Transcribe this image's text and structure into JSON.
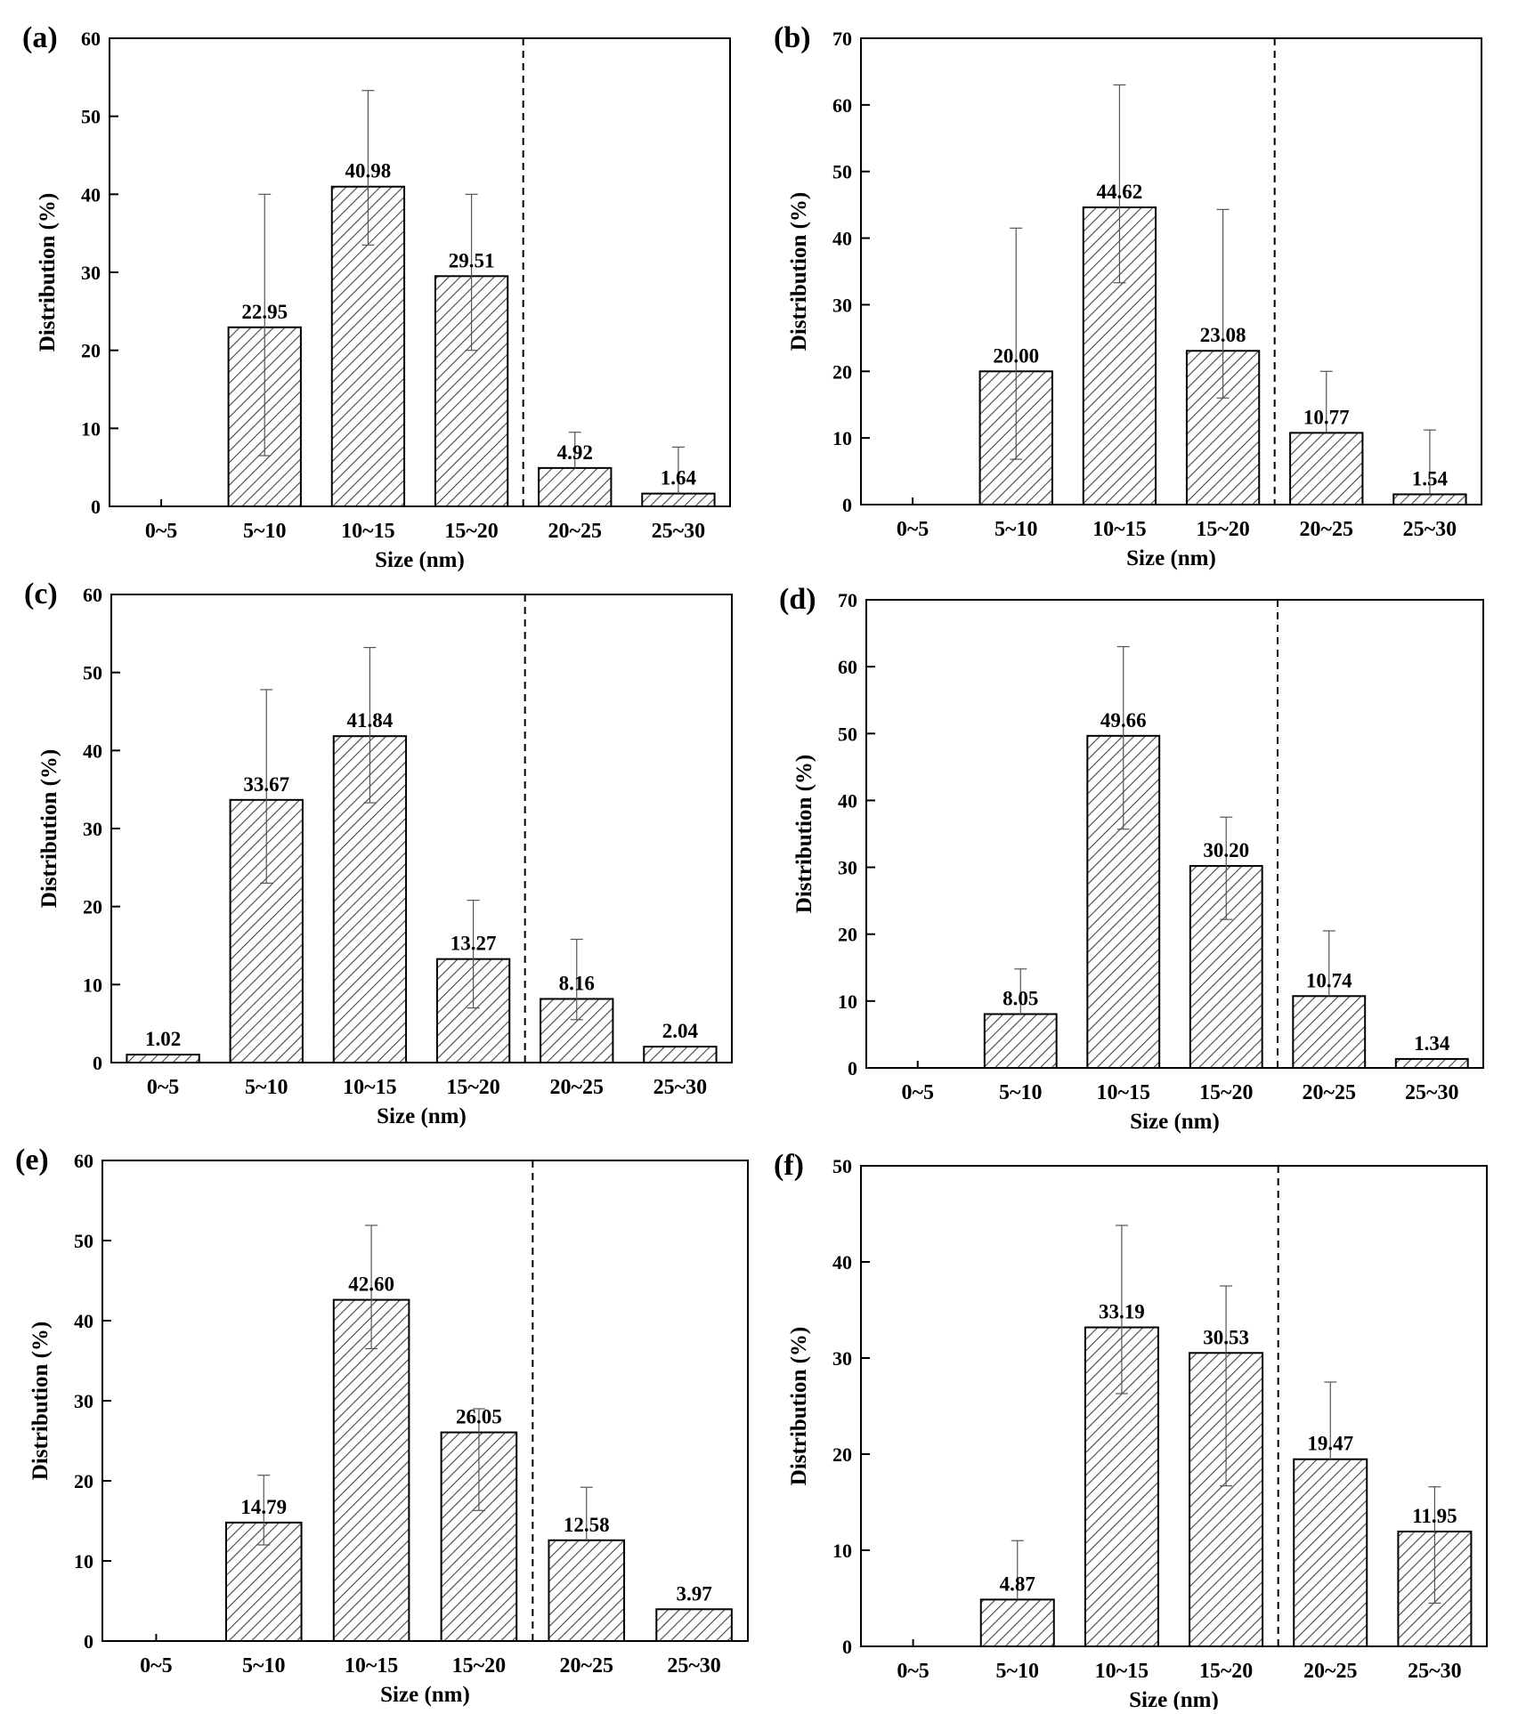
{
  "chart_data": [
    {
      "panel": "(a)",
      "type": "bar",
      "categories": [
        "0~5",
        "5~10",
        "10~15",
        "15~20",
        "20~25",
        "25~30"
      ],
      "values": [
        0,
        22.95,
        40.98,
        29.51,
        4.92,
        1.64
      ],
      "value_labels": [
        "",
        "22.95",
        "40.98",
        "29.51",
        "4.92",
        "1.64"
      ],
      "error_low": [
        null,
        6.5,
        33.5,
        20,
        null,
        null
      ],
      "error_high": [
        null,
        40,
        53.3,
        40,
        9.5,
        7.6
      ],
      "xlabel": "Size (nm)",
      "ylabel": "Distribution (%)",
      "ylim": [
        0,
        60
      ],
      "yticks": [
        0,
        10,
        20,
        30,
        40,
        50,
        60
      ],
      "divider_between": [
        3,
        4
      ]
    },
    {
      "panel": "(b)",
      "type": "bar",
      "categories": [
        "0~5",
        "5~10",
        "10~15",
        "15~20",
        "20~25",
        "25~30"
      ],
      "values": [
        0,
        20.0,
        44.62,
        23.08,
        10.77,
        1.54
      ],
      "value_labels": [
        "",
        "20.00",
        "44.62",
        "23.08",
        "10.77",
        "1.54"
      ],
      "error_low": [
        null,
        6.8,
        33.3,
        16,
        null,
        null
      ],
      "error_high": [
        null,
        41.5,
        63,
        44.3,
        20,
        11.2
      ],
      "xlabel": "Size (nm)",
      "ylabel": "Distribution (%)",
      "ylim": [
        0,
        70
      ],
      "yticks": [
        0,
        10,
        20,
        30,
        40,
        50,
        60,
        70
      ],
      "divider_between": [
        3,
        4
      ]
    },
    {
      "panel": "(c)",
      "type": "bar",
      "categories": [
        "0~5",
        "5~10",
        "10~15",
        "15~20",
        "20~25",
        "25~30"
      ],
      "values": [
        1.02,
        33.67,
        41.84,
        13.27,
        8.16,
        2.04
      ],
      "value_labels": [
        "1.02",
        "33.67",
        "41.84",
        "13.27",
        "8.16",
        "2.04"
      ],
      "error_low": [
        null,
        23,
        33.3,
        7,
        5.5,
        null
      ],
      "error_high": [
        null,
        47.8,
        53.2,
        20.8,
        15.8,
        null
      ],
      "xlabel": "Size (nm)",
      "ylabel": "Distribution (%)",
      "ylim": [
        0,
        60
      ],
      "yticks": [
        0,
        10,
        20,
        30,
        40,
        50,
        60
      ],
      "divider_between": [
        3,
        4
      ]
    },
    {
      "panel": "(d)",
      "type": "bar",
      "categories": [
        "0~5",
        "5~10",
        "10~15",
        "15~20",
        "20~25",
        "25~30"
      ],
      "values": [
        0,
        8.05,
        49.66,
        30.2,
        10.74,
        1.34
      ],
      "value_labels": [
        "",
        "8.05",
        "49.66",
        "30.20",
        "10.74",
        "1.34"
      ],
      "error_low": [
        null,
        null,
        35.7,
        22.2,
        null,
        null
      ],
      "error_high": [
        null,
        14.8,
        63,
        37.5,
        20.5,
        null
      ],
      "xlabel": "Size (nm)",
      "ylabel": "Distribution (%)",
      "ylim": [
        0,
        70
      ],
      "yticks": [
        0,
        10,
        20,
        30,
        40,
        50,
        60,
        70
      ],
      "divider_between": [
        3,
        4
      ]
    },
    {
      "panel": "(e)",
      "type": "bar",
      "categories": [
        "0~5",
        "5~10",
        "10~15",
        "15~20",
        "20~25",
        "25~30"
      ],
      "values": [
        0,
        14.79,
        42.6,
        26.05,
        12.58,
        3.97
      ],
      "value_labels": [
        "",
        "14.79",
        "42.60",
        "26.05",
        "12.58",
        "3.97"
      ],
      "error_low": [
        null,
        12,
        36.5,
        16.3,
        null,
        null
      ],
      "error_high": [
        null,
        20.7,
        51.9,
        29,
        19.2,
        null
      ],
      "xlabel": "Size (nm)",
      "ylabel": "Distribution (%)",
      "ylim": [
        0,
        60
      ],
      "yticks": [
        0,
        10,
        20,
        30,
        40,
        50,
        60
      ],
      "divider_between": [
        3,
        4
      ]
    },
    {
      "panel": "(f)",
      "type": "bar",
      "categories": [
        "0~5",
        "5~10",
        "10~15",
        "15~20",
        "20~25",
        "25~30"
      ],
      "values": [
        0,
        4.87,
        33.19,
        30.53,
        19.47,
        11.95
      ],
      "value_labels": [
        "",
        "4.87",
        "33.19",
        "30.53",
        "19.47",
        "11.95"
      ],
      "error_low": [
        null,
        null,
        26.3,
        16.7,
        null,
        4.5
      ],
      "error_high": [
        null,
        11,
        43.8,
        37.5,
        27.5,
        16.6
      ],
      "xlabel": "Size (nm)",
      "ylabel": "Distribution (%)",
      "ylim": [
        0,
        50
      ],
      "yticks": [
        0,
        10,
        20,
        30,
        40,
        50
      ],
      "divider_between": [
        3,
        4
      ]
    }
  ]
}
